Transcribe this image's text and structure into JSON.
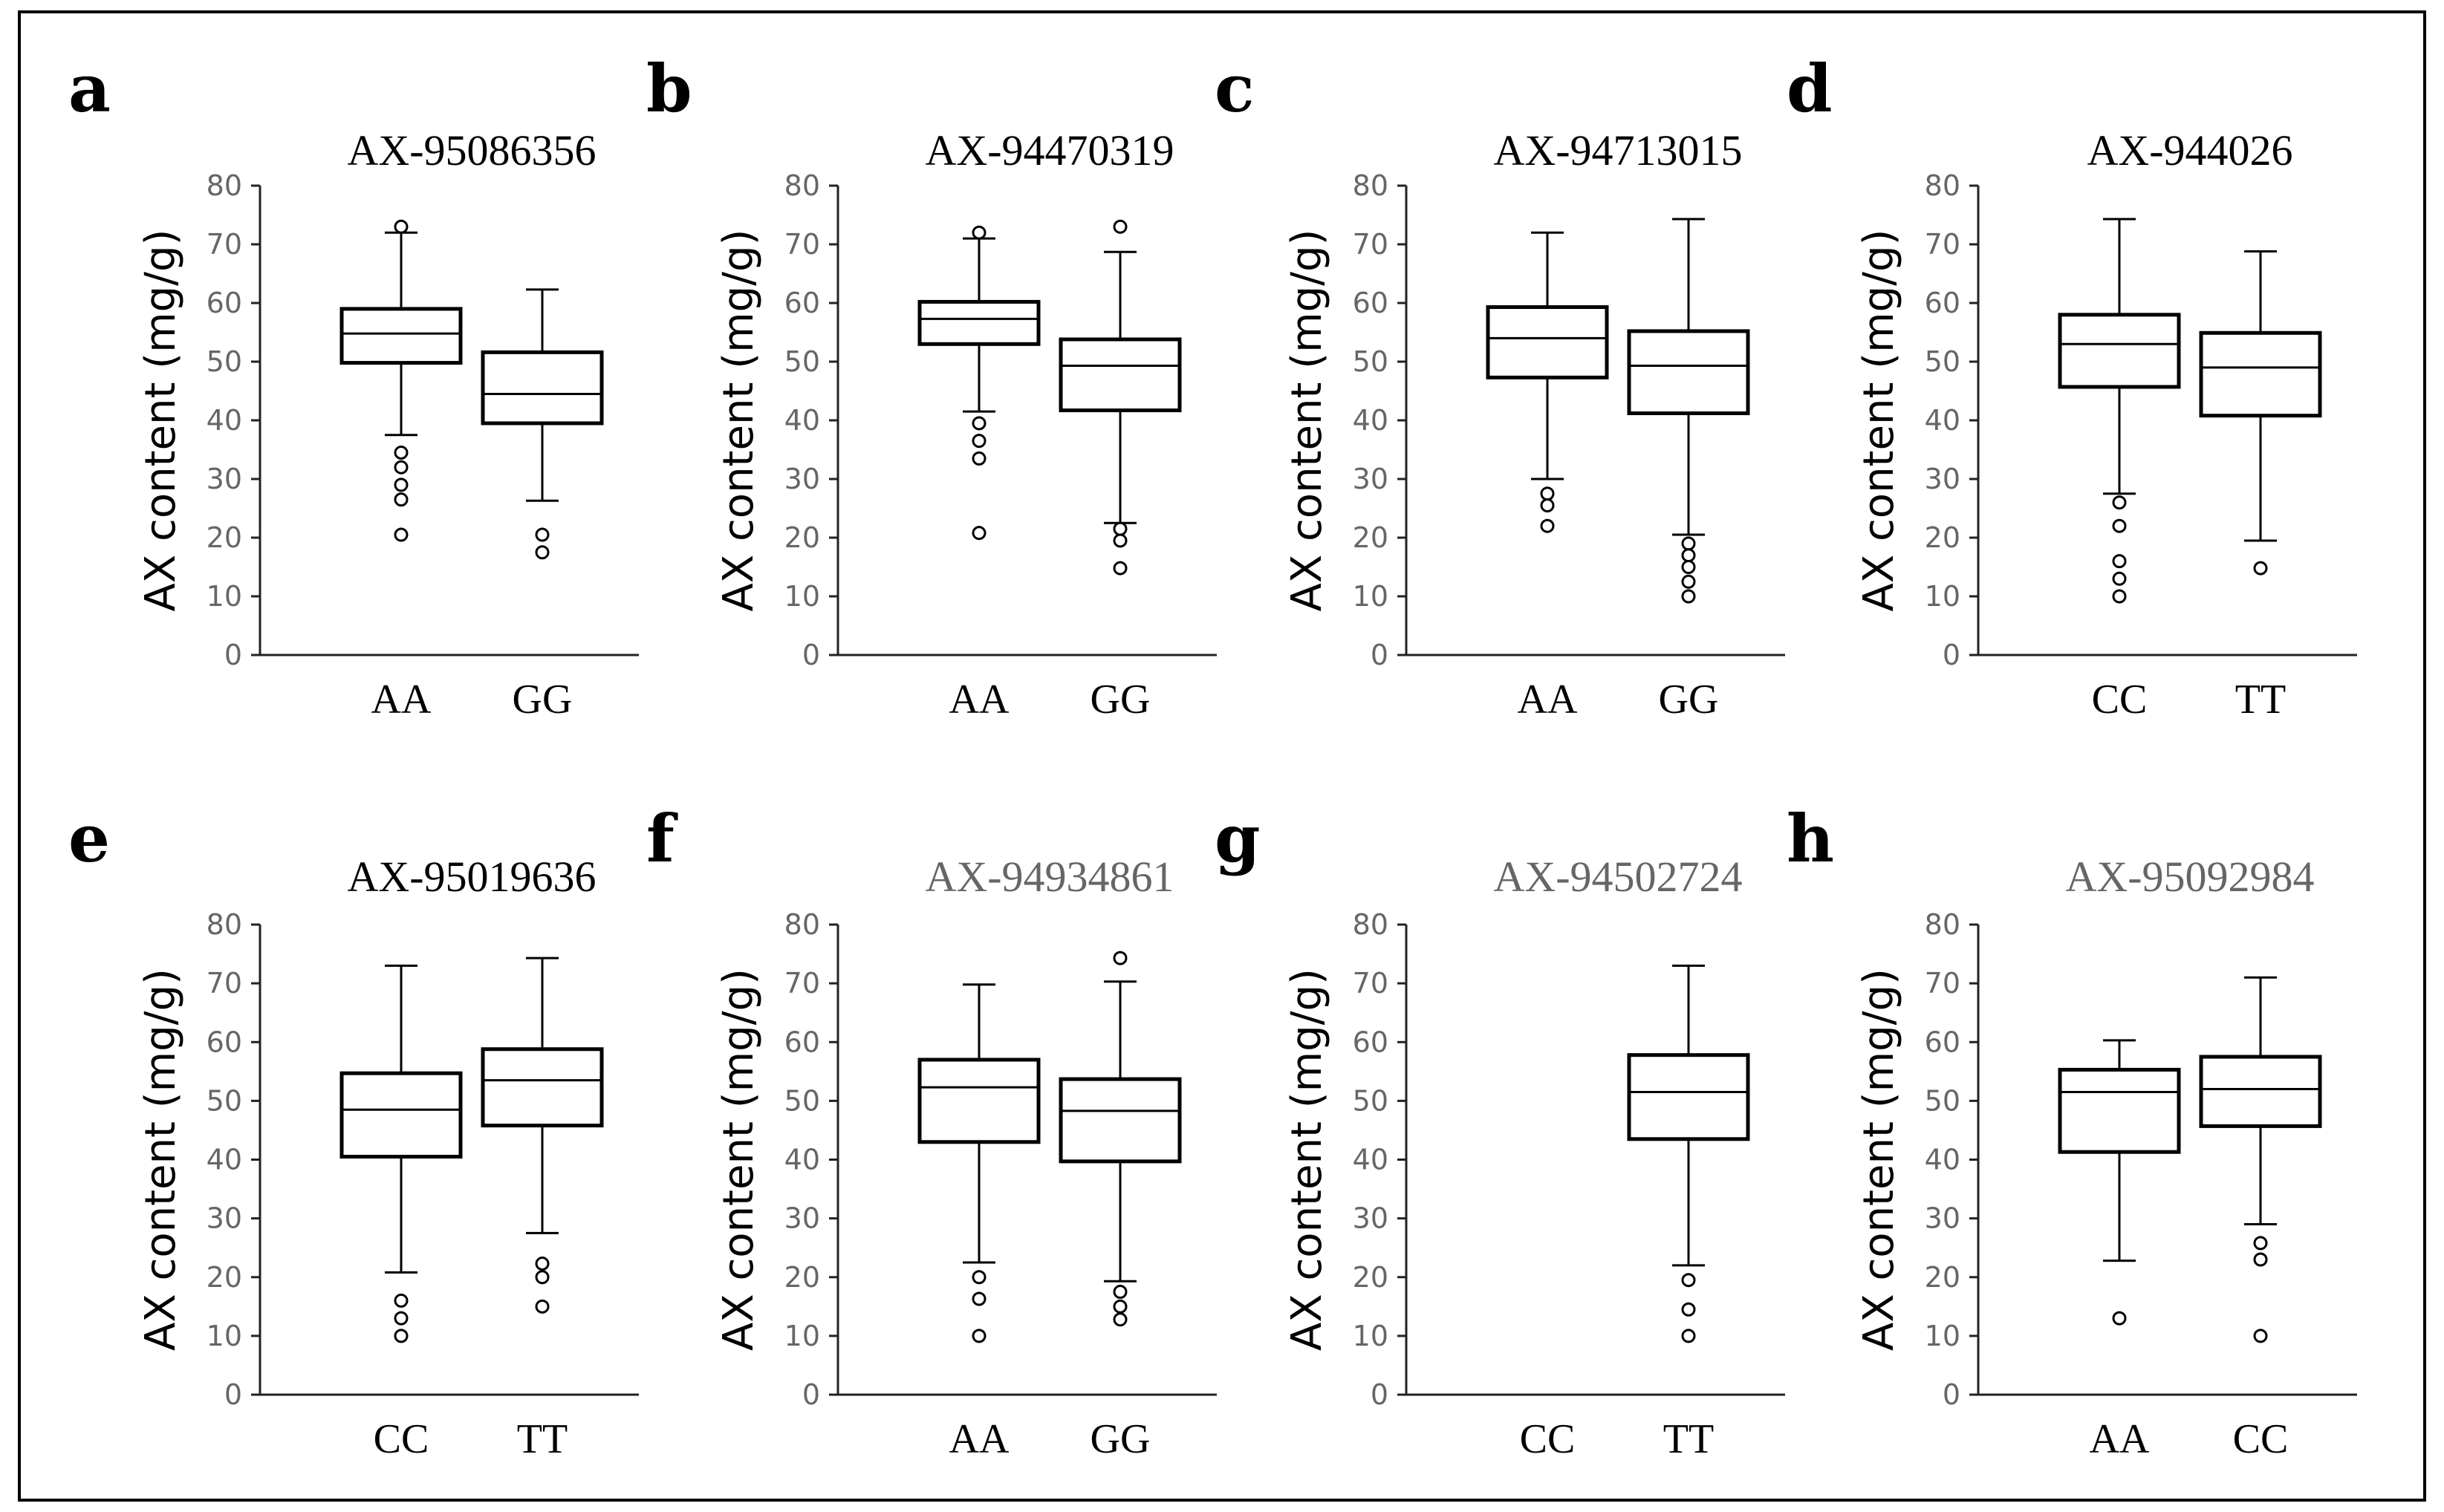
{
  "chart_data": [
    {
      "type": "boxplot",
      "panel": "a",
      "title": "AX-95086356",
      "title_color": "#000000",
      "ylabel": "AX content (mg/g)",
      "ylim": [
        0,
        80
      ],
      "yticks": [
        0,
        10,
        20,
        30,
        40,
        50,
        60,
        70,
        80
      ],
      "categories": [
        "AA",
        "GG"
      ],
      "boxes": [
        {
          "min": 37.5,
          "q1": 49.8,
          "median": 54.8,
          "q3": 59.0,
          "max": 72.0,
          "outliers": [
            73,
            34.5,
            32,
            29,
            26.5,
            20.5
          ]
        },
        {
          "min": 26.3,
          "q1": 39.5,
          "median": 44.5,
          "q3": 51.6,
          "max": 62.3,
          "outliers": [
            20.5,
            17.5
          ]
        }
      ]
    },
    {
      "type": "boxplot",
      "panel": "b",
      "title": "AX-94470319",
      "title_color": "#000000",
      "ylabel": "AX content (mg/g)",
      "ylim": [
        0,
        80
      ],
      "yticks": [
        0,
        10,
        20,
        30,
        40,
        50,
        60,
        70,
        80
      ],
      "categories": [
        "AA",
        "GG"
      ],
      "boxes": [
        {
          "min": 41.5,
          "q1": 53.0,
          "median": 57.3,
          "q3": 60.2,
          "max": 71.0,
          "outliers": [
            72,
            39.5,
            36.5,
            33.5,
            20.8
          ]
        },
        {
          "min": 22.5,
          "q1": 41.7,
          "median": 49.3,
          "q3": 53.8,
          "max": 68.7,
          "outliers": [
            73,
            21.5,
            19.5,
            14.8
          ]
        }
      ]
    },
    {
      "type": "boxplot",
      "panel": "c",
      "title": "AX-94713015",
      "title_color": "#000000",
      "ylabel": "AX content (mg/g)",
      "ylim": [
        0,
        80
      ],
      "yticks": [
        0,
        10,
        20,
        30,
        40,
        50,
        60,
        70,
        80
      ],
      "categories": [
        "AA",
        "GG"
      ],
      "boxes": [
        {
          "min": 30.0,
          "q1": 47.3,
          "median": 54.0,
          "q3": 59.3,
          "max": 72.0,
          "outliers": [
            27.5,
            25.5,
            22
          ]
        },
        {
          "min": 20.5,
          "q1": 41.2,
          "median": 49.3,
          "q3": 55.2,
          "max": 74.3,
          "outliers": [
            19,
            17,
            15,
            12.5,
            10
          ]
        }
      ]
    },
    {
      "type": "boxplot",
      "panel": "d",
      "title": "AX-944026",
      "title_color": "#000000",
      "ylabel": "AX content (mg/g)",
      "ylim": [
        0,
        80
      ],
      "yticks": [
        0,
        10,
        20,
        30,
        40,
        50,
        60,
        70,
        80
      ],
      "categories": [
        "CC",
        "TT"
      ],
      "boxes": [
        {
          "min": 27.5,
          "q1": 45.7,
          "median": 53.0,
          "q3": 58.0,
          "max": 74.3,
          "outliers": [
            26,
            22,
            16,
            13,
            10
          ]
        },
        {
          "min": 19.5,
          "q1": 40.8,
          "median": 49.0,
          "q3": 54.9,
          "max": 68.8,
          "outliers": [
            14.8
          ]
        }
      ]
    },
    {
      "type": "boxplot",
      "panel": "e",
      "title": "AX-95019636",
      "title_color": "#000000",
      "ylabel": "AX content (mg/g)",
      "ylim": [
        0,
        80
      ],
      "yticks": [
        0,
        10,
        20,
        30,
        40,
        50,
        60,
        70,
        80
      ],
      "categories": [
        "CC",
        "TT"
      ],
      "boxes": [
        {
          "min": 20.8,
          "q1": 40.5,
          "median": 48.5,
          "q3": 54.7,
          "max": 73.0,
          "outliers": [
            16,
            13,
            10
          ]
        },
        {
          "min": 27.5,
          "q1": 45.8,
          "median": 53.5,
          "q3": 58.8,
          "max": 74.3,
          "outliers": [
            22.3,
            20,
            15
          ]
        }
      ]
    },
    {
      "type": "boxplot",
      "panel": "f",
      "title": "AX-94934861",
      "title_color": "#666666",
      "ylabel": "AX content (mg/g)",
      "ylim": [
        0,
        80
      ],
      "yticks": [
        0,
        10,
        20,
        30,
        40,
        50,
        60,
        70,
        80
      ],
      "categories": [
        "AA",
        "GG"
      ],
      "boxes": [
        {
          "min": 22.5,
          "q1": 43.0,
          "median": 52.3,
          "q3": 57.0,
          "max": 69.8,
          "outliers": [
            20,
            16.3,
            10
          ]
        },
        {
          "min": 19.3,
          "q1": 39.7,
          "median": 48.3,
          "q3": 53.7,
          "max": 70.3,
          "outliers": [
            74.3,
            17.5,
            15,
            12.8
          ]
        }
      ]
    },
    {
      "type": "boxplot",
      "panel": "g",
      "title": "AX-94502724",
      "title_color": "#666666",
      "ylabel": "AX content (mg/g)",
      "ylim": [
        0,
        80
      ],
      "yticks": [
        0,
        10,
        20,
        30,
        40,
        50,
        60,
        70,
        80
      ],
      "categories": [
        "CC",
        "TT"
      ],
      "boxes": [
        null,
        {
          "min": 22.0,
          "q1": 43.5,
          "median": 51.5,
          "q3": 57.8,
          "max": 73.0,
          "outliers": [
            19.5,
            14.5,
            10
          ]
        }
      ]
    },
    {
      "type": "boxplot",
      "panel": "h",
      "title": "AX-95092984",
      "title_color": "#666666",
      "ylabel": "AX content (mg/g)",
      "ylim": [
        0,
        80
      ],
      "yticks": [
        0,
        10,
        20,
        30,
        40,
        50,
        60,
        70,
        80
      ],
      "categories": [
        "AA",
        "CC"
      ],
      "boxes": [
        {
          "min": 22.8,
          "q1": 41.3,
          "median": 51.5,
          "q3": 55.3,
          "max": 60.3,
          "outliers": [
            13
          ]
        },
        {
          "min": 29.0,
          "q1": 45.7,
          "median": 52.0,
          "q3": 57.5,
          "max": 71.0,
          "outliers": [
            25.8,
            23,
            10
          ]
        }
      ]
    }
  ]
}
